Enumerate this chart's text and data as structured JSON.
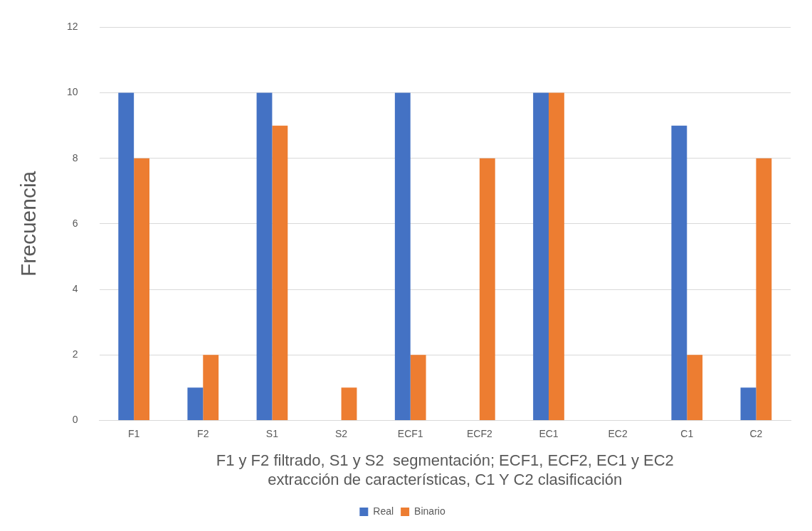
{
  "chart_data": {
    "type": "bar",
    "xlabel": "F1 y F2 filtrado, S1 y S2  segmentación; ECF1, ECF2, EC1 y EC2 extracción de características, C1 Y C2 clasificación",
    "ylabel": "Frecuencia",
    "categories": [
      "F1",
      "F2",
      "S1",
      "S2",
      "ECF1",
      "ECF2",
      "EC1",
      "EC2",
      "C1",
      "C2"
    ],
    "series": [
      {
        "name": "Real",
        "color": "#4472c4",
        "values": [
          10,
          1,
          10,
          0,
          10,
          0,
          10,
          0,
          9,
          1
        ]
      },
      {
        "name": "Binario",
        "color": "#ed7d31",
        "values": [
          8,
          2,
          9,
          1,
          2,
          8,
          10,
          0,
          2,
          8
        ]
      }
    ],
    "ylim": [
      0,
      12
    ],
    "yticks": [
      0,
      2,
      4,
      6,
      8,
      10,
      12
    ],
    "grid": "y",
    "legend": "bottom"
  }
}
